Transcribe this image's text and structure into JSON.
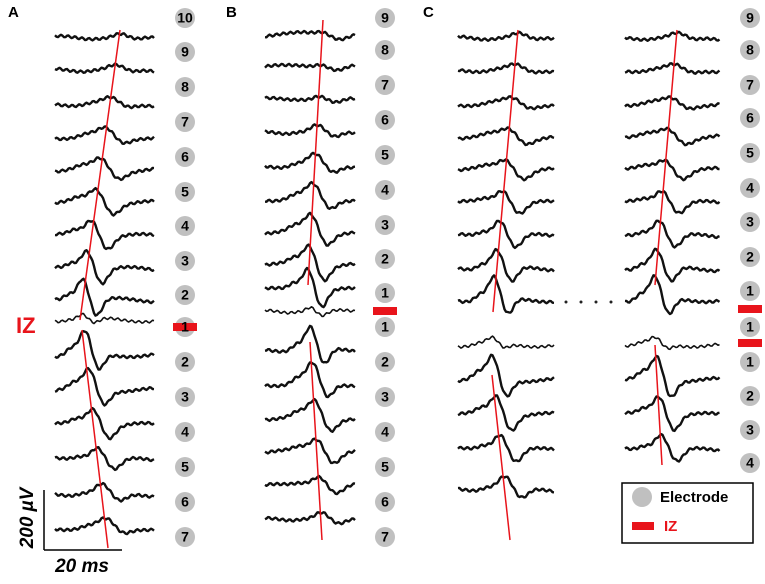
{
  "panels": [
    {
      "label": "A",
      "iz_label": "IZ",
      "electrodes": [
        "10",
        "9",
        "8",
        "7",
        "6",
        "5",
        "4",
        "3",
        "2",
        "1",
        "2",
        "3",
        "4",
        "5",
        "6",
        "7"
      ]
    },
    {
      "label": "B",
      "electrodes": [
        "9",
        "8",
        "7",
        "6",
        "5",
        "4",
        "3",
        "2",
        "1",
        "1",
        "2",
        "3",
        "4",
        "5",
        "6",
        "7"
      ]
    },
    {
      "label": "C",
      "electrodes": [
        "9",
        "8",
        "7",
        "6",
        "5",
        "4",
        "3",
        "2",
        "1",
        "1",
        "1",
        "2",
        "3",
        "4"
      ]
    }
  ],
  "legend": {
    "electrode": "Electrode",
    "iz": "IZ"
  },
  "scale_bar": {
    "amplitude": "200 µV",
    "time": "20 ms"
  }
}
